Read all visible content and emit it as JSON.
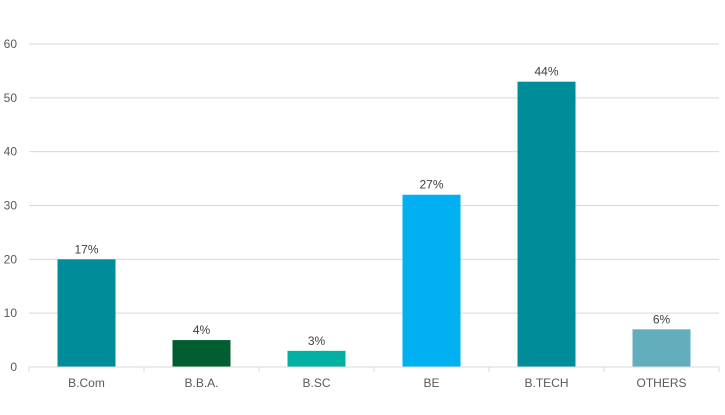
{
  "chart_data": {
    "type": "bar",
    "title": "",
    "xlabel": "",
    "ylabel": "",
    "ylim": [
      0,
      60
    ],
    "yticks": [
      0,
      10,
      20,
      30,
      40,
      50,
      60
    ],
    "grid": true,
    "legend": "none",
    "categories": [
      "B.Com",
      "B.B.A.",
      "B.SC",
      "BE",
      "B.TECH",
      "OTHERS"
    ],
    "values": [
      20,
      5,
      3,
      32,
      53,
      7
    ],
    "data_labels": [
      "17%",
      "4%",
      "3%",
      "27%",
      "44%",
      "6%"
    ],
    "colors": [
      "#008c99",
      "#005e30",
      "#00b0a0",
      "#00b0f0",
      "#008c99",
      "#62aebc"
    ]
  }
}
